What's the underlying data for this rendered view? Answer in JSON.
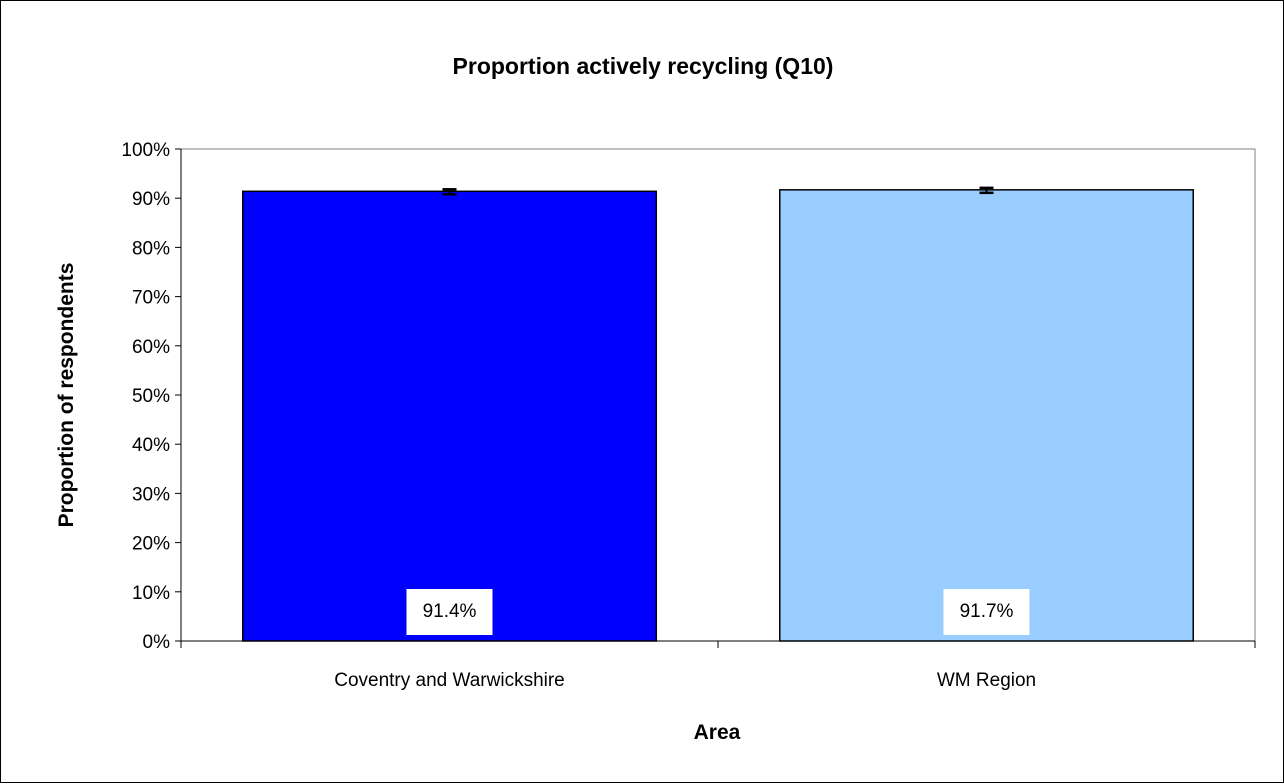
{
  "chart_data": {
    "type": "bar",
    "title": "Proportion actively recycling (Q10)",
    "xlabel": "Area",
    "ylabel": "Proportion of respondents",
    "categories": [
      "Coventry and Warwickshire",
      "WM Region"
    ],
    "values": [
      91.4,
      91.7
    ],
    "data_labels": [
      "91.4%",
      "91.7%"
    ],
    "colors": [
      "#0000FF",
      "#99CCFF"
    ],
    "error_bars": true,
    "ylim": [
      0,
      100
    ],
    "yticks": [
      "0%",
      "10%",
      "20%",
      "30%",
      "40%",
      "50%",
      "60%",
      "70%",
      "80%",
      "90%",
      "100%"
    ],
    "grid": false,
    "legend": "none"
  }
}
